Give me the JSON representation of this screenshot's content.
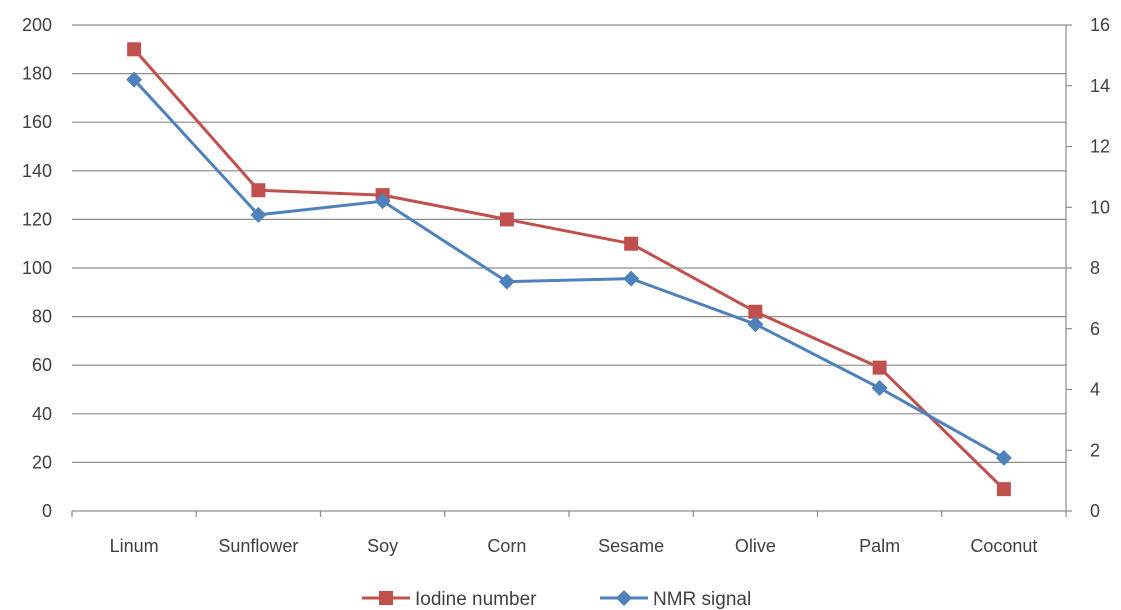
{
  "chart_data": {
    "type": "line",
    "categories": [
      "Linum",
      "Sunflower",
      "Soy",
      "Corn",
      "Sesame",
      "Olive",
      "Palm",
      "Coconut"
    ],
    "series": [
      {
        "name": "Iodine number",
        "axis": "left",
        "color": "#c0504d",
        "marker": "square",
        "values": [
          190,
          132,
          130,
          120,
          110,
          82,
          59,
          9
        ]
      },
      {
        "name": "NMR signal",
        "axis": "right",
        "color": "#4f81bd",
        "marker": "diamond",
        "values": [
          14.2,
          9.75,
          10.2,
          7.55,
          7.65,
          6.15,
          4.05,
          1.75
        ]
      }
    ],
    "y_left": {
      "ticks": [
        0,
        20,
        40,
        60,
        80,
        100,
        120,
        140,
        160,
        180,
        200
      ],
      "min": 0,
      "max": 200
    },
    "y_right": {
      "ticks": [
        0,
        2,
        4,
        6,
        8,
        10,
        12,
        14,
        16
      ],
      "min": 0,
      "max": 16
    },
    "grid": true,
    "legend": "bottom",
    "gridColor": "#8c8c8c"
  }
}
